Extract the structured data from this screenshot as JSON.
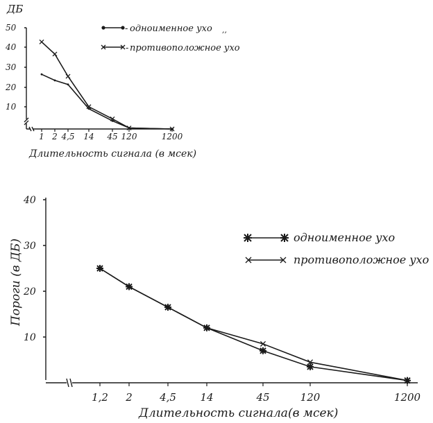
{
  "chart_data": [
    {
      "type": "line",
      "ylabel": "ДБ",
      "xlabel": "Длительность сигнала (в мсек)",
      "categories": [
        "1",
        "2",
        "4,5",
        "14",
        "45",
        "120",
        "1200"
      ],
      "ylim": [
        0,
        50
      ],
      "yticks": [
        "10",
        "20",
        "30",
        "40",
        "50"
      ],
      "legend_position": "top-right",
      "series": [
        {
          "name": "одноименное ухо",
          "marker": "dot",
          "values": [
            27,
            24,
            22,
            10,
            4,
            0.5,
            0
          ]
        },
        {
          "name": "противоположное ухо",
          "marker": "cross",
          "values": [
            43,
            37,
            26,
            11,
            5,
            0.5,
            0
          ]
        }
      ],
      "legend_extra": ",,"
    },
    {
      "type": "line",
      "ylabel": "Пороги (в ДБ)",
      "xlabel": "Длительность сигнала(в мсек)",
      "categories": [
        "1,2",
        "2",
        "4,5",
        "14",
        "45",
        "120",
        "1200"
      ],
      "ylim": [
        0,
        40
      ],
      "yticks": [
        "10",
        "20",
        "30",
        "40"
      ],
      "legend_position": "right",
      "series": [
        {
          "name": "одноименное ухо",
          "marker": "star",
          "values": [
            25,
            21,
            16.5,
            12,
            7,
            3.5,
            0.5
          ]
        },
        {
          "name": "противоположное ухо",
          "marker": "cross",
          "values": [
            25,
            21,
            16.5,
            12,
            8.5,
            4.5,
            0.5
          ]
        }
      ]
    }
  ]
}
